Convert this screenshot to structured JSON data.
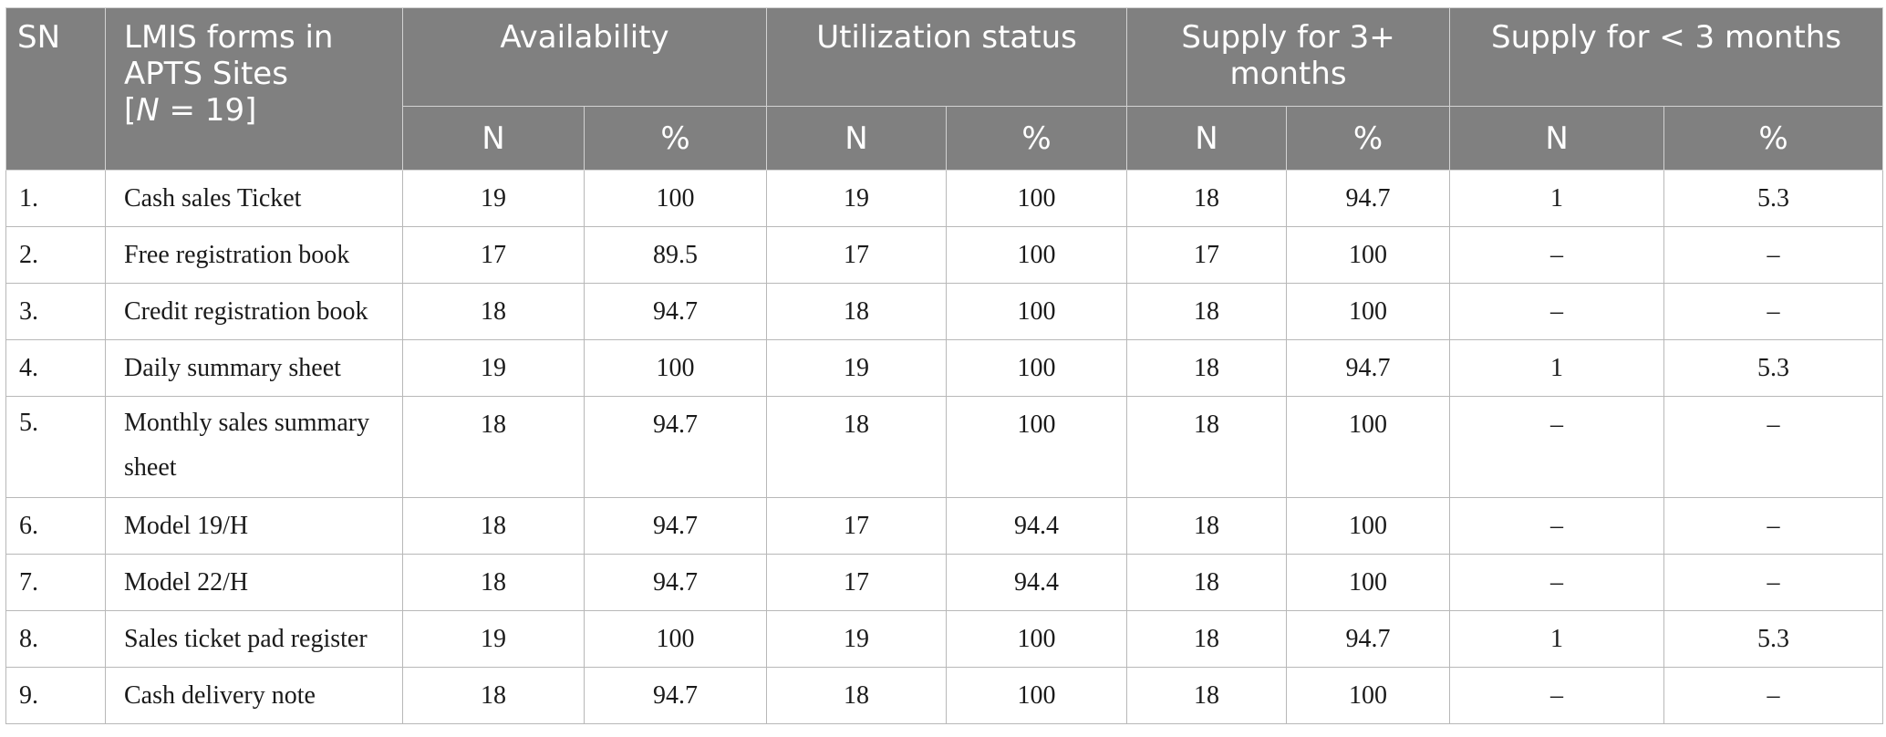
{
  "header": {
    "sn": "SN",
    "form_line1": "LMIS forms in",
    "form_line2": "APTS Sites",
    "form_line3_prefix": "[",
    "form_line3_italic": "N",
    "form_line3_suffix": " = 19]",
    "availability": "Availability",
    "utilization": "Utilization status",
    "supply_3plus": "Supply for 3+ months",
    "supply_lt3": "Supply for < 3 months",
    "n_label": "N",
    "pct_label": "%"
  },
  "rows": [
    {
      "sn": "1.",
      "form": "Cash sales Ticket",
      "avail_n": "19",
      "avail_pct": "100",
      "util_n": "19",
      "util_pct": "100",
      "s3_n": "18",
      "s3_pct": "94.7",
      "slt_n": "1",
      "slt_pct": "5.3"
    },
    {
      "sn": "2.",
      "form": "Free registration book",
      "avail_n": "17",
      "avail_pct": "89.5",
      "util_n": "17",
      "util_pct": "100",
      "s3_n": "17",
      "s3_pct": "100",
      "slt_n": "–",
      "slt_pct": "–"
    },
    {
      "sn": "3.",
      "form": "Credit registration book",
      "avail_n": "18",
      "avail_pct": "94.7",
      "util_n": "18",
      "util_pct": "100",
      "s3_n": "18",
      "s3_pct": "100",
      "slt_n": "–",
      "slt_pct": "–"
    },
    {
      "sn": "4.",
      "form": "Daily summary sheet",
      "avail_n": "19",
      "avail_pct": "100",
      "util_n": "19",
      "util_pct": "100",
      "s3_n": "18",
      "s3_pct": "94.7",
      "slt_n": "1",
      "slt_pct": "5.3"
    },
    {
      "sn": "5.",
      "form": "Monthly sales summary sheet",
      "avail_n": "18",
      "avail_pct": "94.7",
      "util_n": "18",
      "util_pct": "100",
      "s3_n": "18",
      "s3_pct": "100",
      "slt_n": "–",
      "slt_pct": "–"
    },
    {
      "sn": "6.",
      "form": "Model 19/H",
      "avail_n": "18",
      "avail_pct": "94.7",
      "util_n": "17",
      "util_pct": "94.4",
      "s3_n": "18",
      "s3_pct": "100",
      "slt_n": "–",
      "slt_pct": "–"
    },
    {
      "sn": "7.",
      "form": "Model 22/H",
      "avail_n": "18",
      "avail_pct": "94.7",
      "util_n": "17",
      "util_pct": "94.4",
      "s3_n": "18",
      "s3_pct": "100",
      "slt_n": "–",
      "slt_pct": "–"
    },
    {
      "sn": "8.",
      "form": "Sales ticket pad register",
      "avail_n": "19",
      "avail_pct": "100",
      "util_n": "19",
      "util_pct": "100",
      "s3_n": "18",
      "s3_pct": "94.7",
      "slt_n": "1",
      "slt_pct": "5.3"
    },
    {
      "sn": "9.",
      "form": "Cash delivery note",
      "avail_n": "18",
      "avail_pct": "94.7",
      "util_n": "18",
      "util_pct": "100",
      "s3_n": "18",
      "s3_pct": "100",
      "slt_n": "–",
      "slt_pct": "–"
    }
  ]
}
